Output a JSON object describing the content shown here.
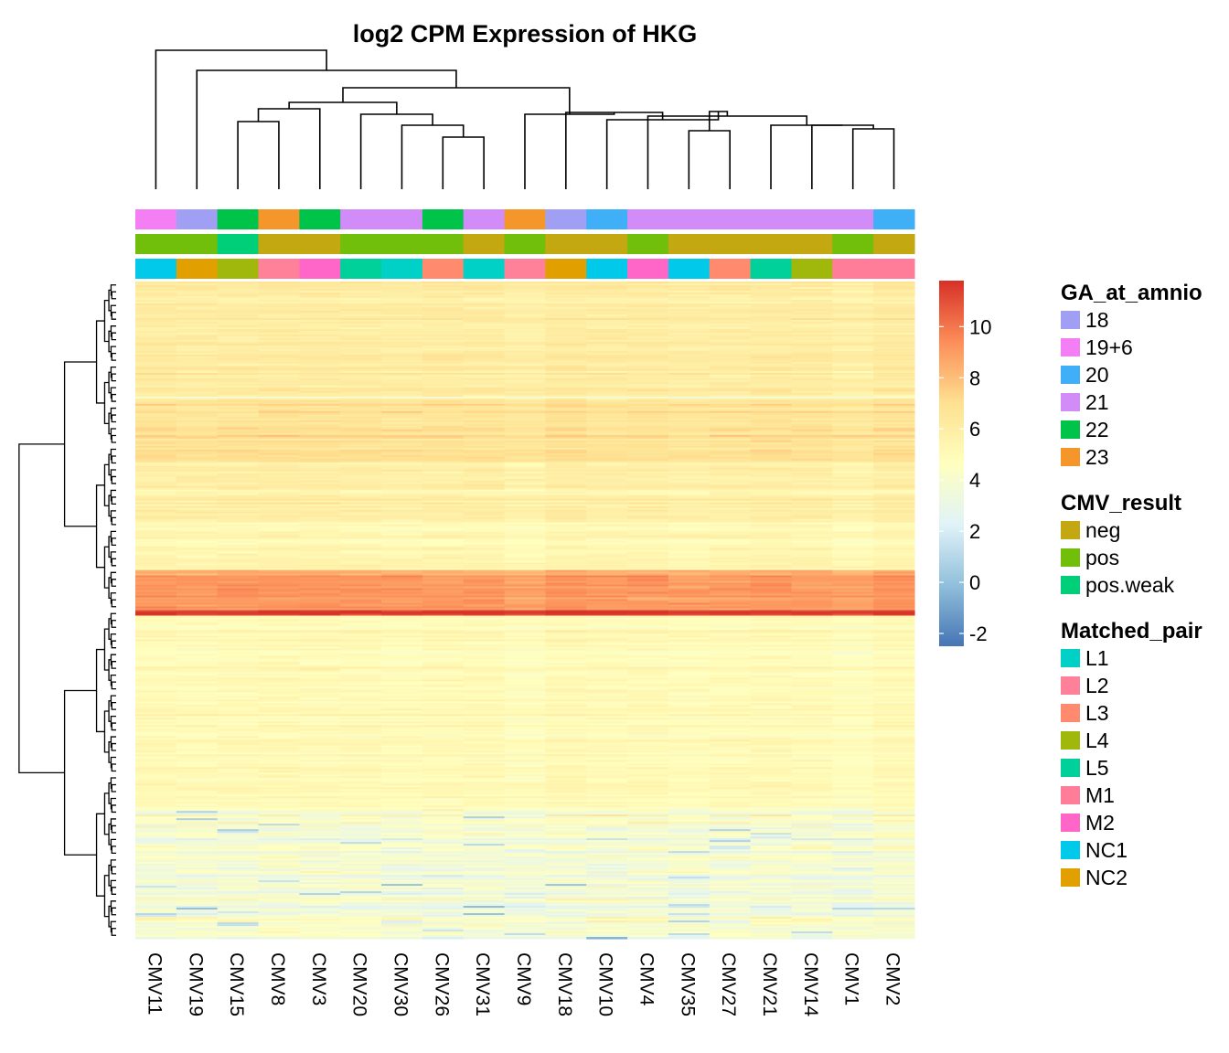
{
  "chart_data": {
    "type": "heatmap",
    "title": "log2 CPM Expression of HKG",
    "columns": [
      "CMV11",
      "CMV19",
      "CMV15",
      "CMV8",
      "CMV3",
      "CMV20",
      "CMV30",
      "CMV26",
      "CMV31",
      "CMV9",
      "CMV18",
      "CMV10",
      "CMV4",
      "CMV35",
      "CMV27",
      "CMV21",
      "CMV14",
      "CMV1",
      "CMV2"
    ],
    "annotations": [
      {
        "name": "GA_at_amnio",
        "values": [
          "19+6",
          "18",
          "22",
          "23",
          "22",
          "21",
          "21",
          "22",
          "21",
          "23",
          "18",
          "20",
          "21",
          "21",
          "21",
          "21",
          "21",
          "21",
          "20"
        ]
      },
      {
        "name": "CMV_result",
        "values": [
          "pos",
          "pos",
          "pos.weak",
          "neg",
          "neg",
          "pos",
          "pos",
          "pos",
          "neg",
          "pos",
          "neg",
          "neg",
          "pos",
          "neg",
          "neg",
          "neg",
          "neg",
          "pos",
          "neg"
        ]
      },
      {
        "name": "Matched_pair",
        "values": [
          "NC1",
          "NC2",
          "L4",
          "L2",
          "M2",
          "L5",
          "L1",
          "L3",
          "L1",
          "L2",
          "NC2",
          "NC1",
          "M2",
          "NC1",
          "L3",
          "L5",
          "L4",
          "M1",
          "M1"
        ]
      }
    ],
    "color_scale": {
      "ticks": [
        -2,
        0,
        2,
        4,
        6,
        8,
        10
      ],
      "range": [
        -2.5,
        11.8
      ],
      "stops": [
        "#4575b4",
        "#91bfdb",
        "#e0f3f8",
        "#ffffbf",
        "#fee090",
        "#fc8d59",
        "#d73027"
      ]
    },
    "row_bands": [
      {
        "from": 0.0,
        "to": 0.035,
        "base": 6.0
      },
      {
        "from": 0.035,
        "to": 0.35,
        "base": 5.9
      },
      {
        "from": 0.35,
        "to": 0.355,
        "base": 3.5
      },
      {
        "from": 0.355,
        "to": 0.545,
        "base": 6.6
      },
      {
        "from": 0.545,
        "to": 0.73,
        "base": 5.7
      },
      {
        "from": 0.73,
        "to": 0.875,
        "base": 5.1
      },
      {
        "from": 0.875,
        "to": 0.89,
        "base": 8.0
      },
      {
        "from": 0.89,
        "to": 1.0,
        "base": 9.0
      },
      {
        "from": 1.0,
        "to": 1.012,
        "base": 11.3
      },
      {
        "from": 1.012,
        "to": 1.6,
        "base": 4.9
      },
      {
        "from": 1.6,
        "to": 2.0,
        "base": 3.8
      }
    ]
  },
  "legends": [
    {
      "title": "GA_at_amnio",
      "items": [
        {
          "label": "18",
          "color": "#a09ff3"
        },
        {
          "label": "19+6",
          "color": "#f47ff4"
        },
        {
          "label": "20",
          "color": "#3fb0f8"
        },
        {
          "label": "21",
          "color": "#d28cf7"
        },
        {
          "label": "22",
          "color": "#00c44a"
        },
        {
          "label": "23",
          "color": "#f5962b"
        }
      ]
    },
    {
      "title": "CMV_result",
      "items": [
        {
          "label": "neg",
          "color": "#c3a812"
        },
        {
          "label": "pos",
          "color": "#71bf0b"
        },
        {
          "label": "pos.weak",
          "color": "#00cf79"
        }
      ]
    },
    {
      "title": "Matched_pair",
      "items": [
        {
          "label": "L1",
          "color": "#00d1c6"
        },
        {
          "label": "L2",
          "color": "#ff8099"
        },
        {
          "label": "L3",
          "color": "#ff8a6e"
        },
        {
          "label": "L4",
          "color": "#9fb80b"
        },
        {
          "label": "L5",
          "color": "#00d09a"
        },
        {
          "label": "M1",
          "color": "#ff7d99"
        },
        {
          "label": "M2",
          "color": "#ff66c7"
        },
        {
          "label": "NC1",
          "color": "#00c9ea"
        },
        {
          "label": "NC2",
          "color": "#e2a000"
        }
      ]
    }
  ]
}
